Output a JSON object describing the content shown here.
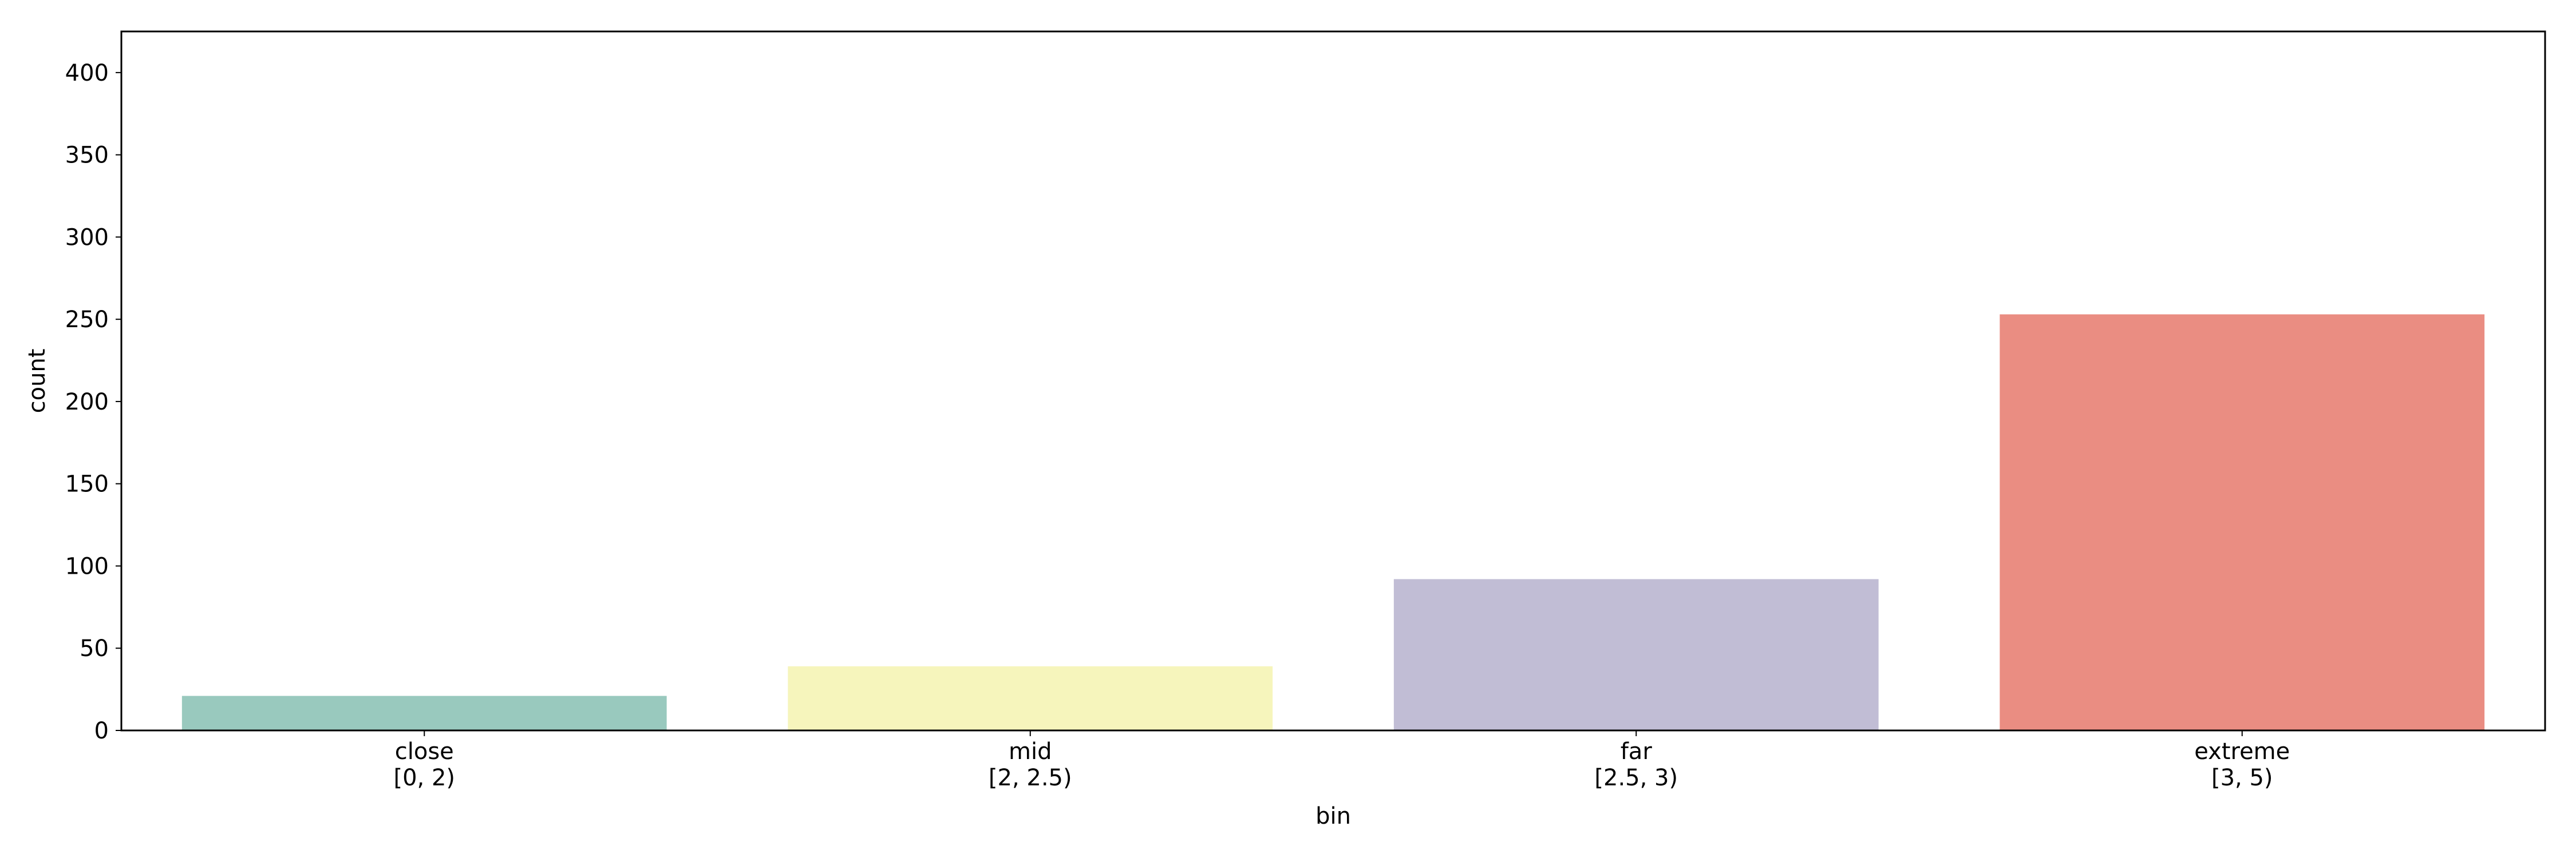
{
  "chart_data": {
    "type": "bar",
    "categories": [
      "close\n[0, 2)",
      "mid\n[2, 2.5)",
      "far\n[2.5, 3)",
      "extreme\n[3, 5)"
    ],
    "values": [
      21,
      39,
      92,
      253
    ],
    "colors": [
      "#99c9be",
      "#f6f5bc",
      "#c1bdd5",
      "#ea8d82"
    ],
    "xlabel": "bin",
    "ylabel": "count",
    "ylim": [
      0,
      425
    ],
    "yticks": [
      0,
      50,
      100,
      150,
      200,
      250,
      300,
      350,
      400
    ],
    "grid": false
  }
}
